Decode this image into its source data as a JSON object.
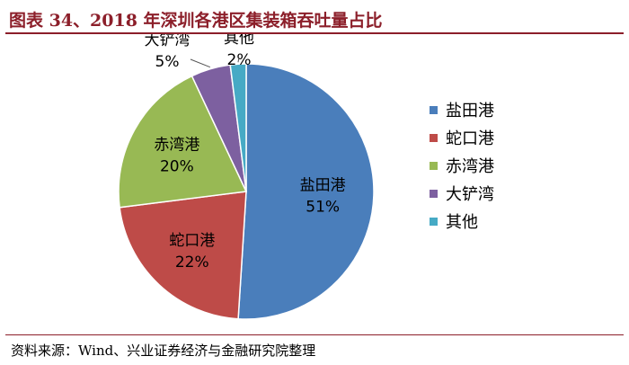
{
  "title": "图表 34、2018 年深圳各港区集装箱吞吐量占比",
  "source": "资料来源：Wind、兴业证券经济与金融研究院整理",
  "colors": {
    "title": "#8c1f2a",
    "slices": [
      "#4a7ebb",
      "#be4b48",
      "#98b954",
      "#7d60a0",
      "#46aac5"
    ]
  },
  "chart_data": {
    "type": "pie",
    "title": "",
    "categories": [
      "盐田港",
      "蛇口港",
      "赤湾港",
      "大铲湾",
      "其他"
    ],
    "values": [
      51,
      22,
      20,
      5,
      2
    ],
    "value_labels": [
      "51%",
      "22%",
      "20%",
      "5%",
      "2%"
    ],
    "legend": "right"
  }
}
